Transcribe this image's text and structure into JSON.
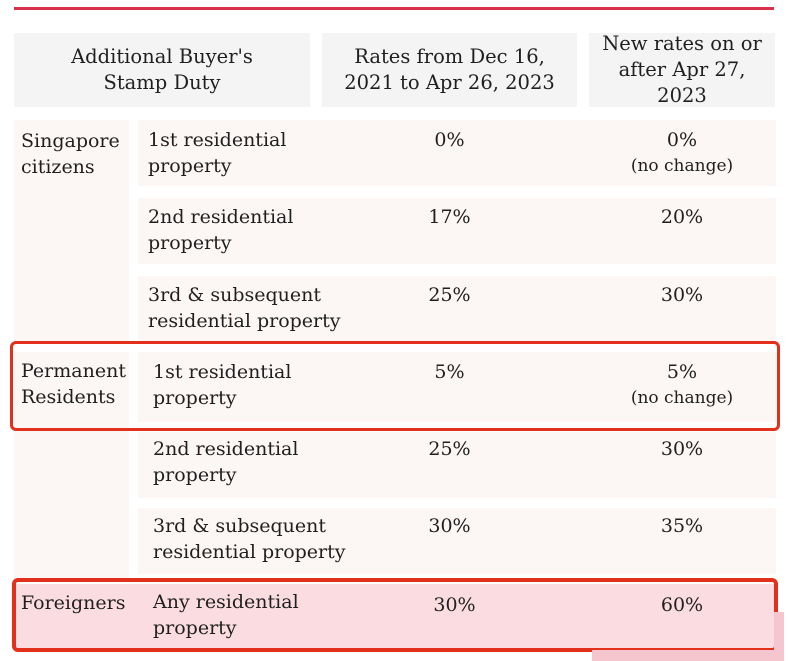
{
  "accent": "#e3301c",
  "header": {
    "col1": "Additional Buyer's Stamp Duty",
    "col2": "Rates from Dec 16, 2021 to Apr 26, 2023",
    "col3": "New rates on or after Apr 27, 2023"
  },
  "groups": {
    "citizens": "Singapore citizens",
    "pr": "Permanent Residents",
    "foreigners": "Foreigners"
  },
  "rows": [
    {
      "property": "1st residential property",
      "old": "0%",
      "new": "0%",
      "note": "(no change)"
    },
    {
      "property": "2nd residential property",
      "old": "17%",
      "new": "20%",
      "note": ""
    },
    {
      "property": "3rd & subsequent residential property",
      "old": "25%",
      "new": "30%",
      "note": ""
    },
    {
      "property": "1st residential property",
      "old": "5%",
      "new": "5%",
      "note": "(no change)"
    },
    {
      "property": "2nd residential property",
      "old": "25%",
      "new": "30%",
      "note": ""
    },
    {
      "property": "3rd & subsequent residential property",
      "old": "30%",
      "new": "35%",
      "note": ""
    },
    {
      "property": "Any residential property",
      "old": "30%",
      "new": "60%",
      "note": ""
    }
  ]
}
